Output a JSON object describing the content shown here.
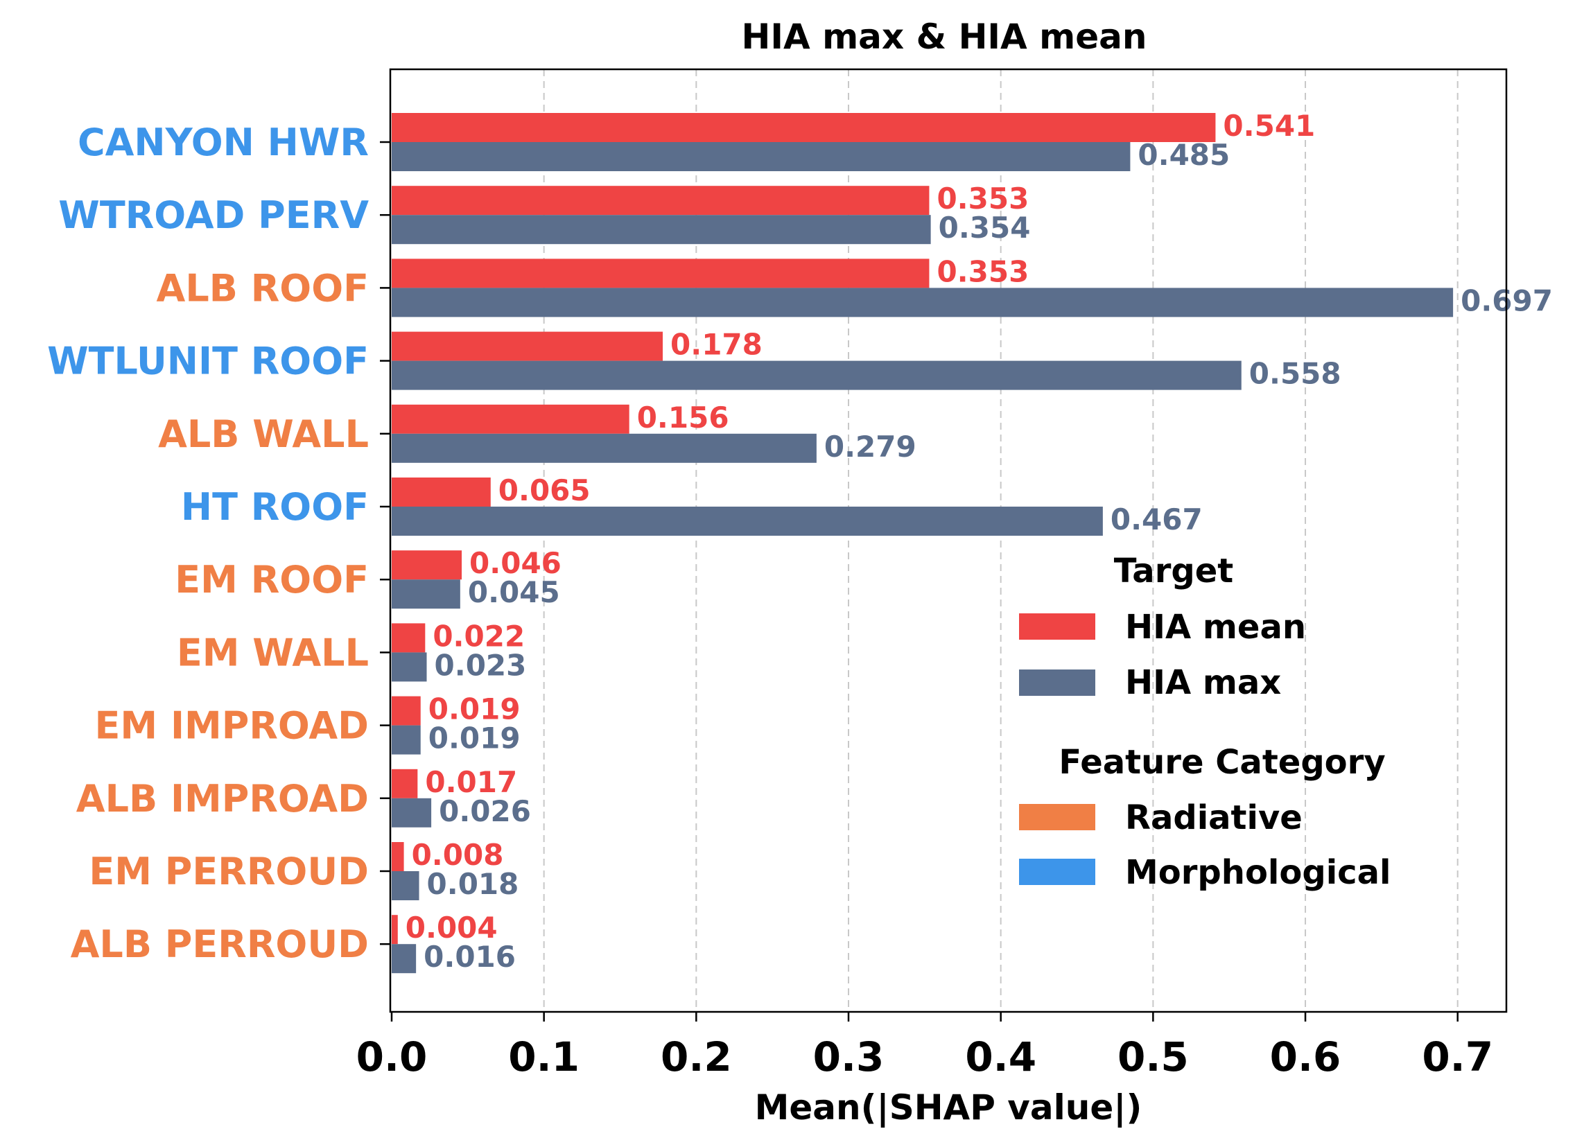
{
  "chart_data": {
    "type": "bar",
    "orientation": "horizontal",
    "title": "HIA max & HIA mean",
    "xlabel": "Mean(|SHAP value|)",
    "ylabel": "",
    "xlim": [
      0,
      0.732
    ],
    "xticks": [
      "0.0",
      "0.1",
      "0.2",
      "0.3",
      "0.4",
      "0.5",
      "0.6",
      "0.7"
    ],
    "xtick_values": [
      0,
      0.1,
      0.2,
      0.3,
      0.4,
      0.5,
      0.6,
      0.7
    ],
    "grid": "vertical dashed",
    "categories": [
      "CANYON HWR",
      "WTROAD PERV",
      "ALB ROOF",
      "WTLUNIT ROOF",
      "ALB WALL",
      "HT ROOF",
      "EM ROOF",
      "EM WALL",
      "EM IMPROAD",
      "ALB IMPROAD",
      "EM PERROUD",
      "ALB PERROUD"
    ],
    "category_group": [
      "Morphological",
      "Morphological",
      "Radiative",
      "Morphological",
      "Radiative",
      "Morphological",
      "Radiative",
      "Radiative",
      "Radiative",
      "Radiative",
      "Radiative",
      "Radiative"
    ],
    "series": [
      {
        "name": "HIA mean",
        "color": "#ef4444",
        "values": [
          0.541,
          0.353,
          0.353,
          0.178,
          0.156,
          0.065,
          0.046,
          0.022,
          0.019,
          0.017,
          0.008,
          0.004
        ],
        "labels": [
          "0.541",
          "0.353",
          "0.353",
          "0.178",
          "0.156",
          "0.065",
          "0.046",
          "0.022",
          "0.019",
          "0.017",
          "0.008",
          "0.004"
        ]
      },
      {
        "name": "HIA max",
        "color": "#5b6e8c",
        "values": [
          0.485,
          0.354,
          0.697,
          0.558,
          0.279,
          0.467,
          0.045,
          0.023,
          0.019,
          0.026,
          0.018,
          0.016
        ],
        "labels": [
          "0.485",
          "0.354",
          "0.697",
          "0.558",
          "0.279",
          "0.467",
          "0.045",
          "0.023",
          "0.019",
          "0.026",
          "0.018",
          "0.016"
        ]
      }
    ],
    "legend": {
      "placement": "lower-right",
      "target_title": "Target",
      "category_title": "Feature Category",
      "categories": [
        {
          "name": "Radiative",
          "color": "#f07f45"
        },
        {
          "name": "Morphological",
          "color": "#3d95ea"
        }
      ]
    }
  }
}
